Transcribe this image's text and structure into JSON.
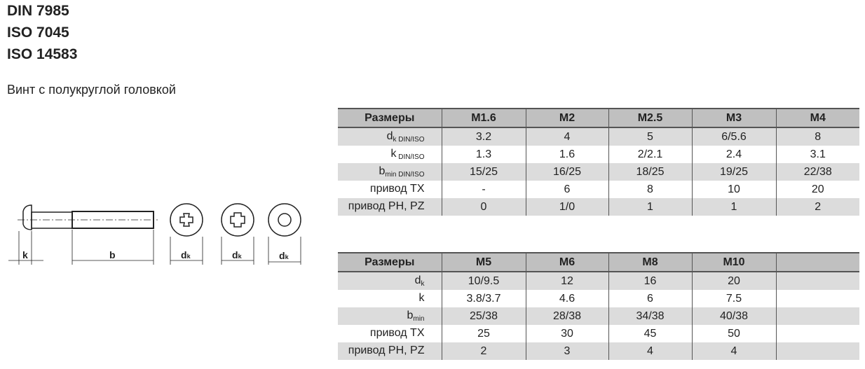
{
  "standards": [
    "DIN 7985",
    "ISO 7045",
    "ISO 14583"
  ],
  "subtitle": "Винт с полукруглой головкой",
  "drawing": {
    "labels": {
      "k": "k",
      "b": "b",
      "dk_main": "d",
      "dk_sub": "k"
    },
    "icons": [
      "screw-side-view-icon",
      "phillips-head-icon",
      "pozidriv-head-icon",
      "torx-head-icon"
    ]
  },
  "table1": {
    "header": [
      "Размеры",
      "M1.6",
      "M2",
      "M2.5",
      "M3",
      "M4"
    ],
    "rows": [
      {
        "label": "d",
        "sub": "k DIN/ISO",
        "values": [
          "3.2",
          "4",
          "5",
          "6/5.6",
          "8"
        ]
      },
      {
        "label": "k",
        "sub": " DIN/ISO",
        "values": [
          "1.3",
          "1.6",
          "2/2.1",
          "2.4",
          "3.1"
        ]
      },
      {
        "label": "b",
        "sub": "min DIN/ISO",
        "values": [
          "15/25",
          "16/25",
          "18/25",
          "19/25",
          "22/38"
        ]
      },
      {
        "label": "привод TX",
        "sub": "",
        "values": [
          "-",
          "6",
          "8",
          "10",
          "20"
        ]
      },
      {
        "label": "привод PH, PZ",
        "sub": "",
        "values": [
          "0",
          "1/0",
          "1",
          "1",
          "2"
        ]
      }
    ]
  },
  "table2": {
    "header": [
      "Размеры",
      "M5",
      "M6",
      "M8",
      "M10",
      ""
    ],
    "rows": [
      {
        "label": "d",
        "sub": "k",
        "values": [
          "10/9.5",
          "12",
          "16",
          "20",
          ""
        ]
      },
      {
        "label": "k",
        "sub": "",
        "values": [
          "3.8/3.7",
          "4.6",
          "6",
          "7.5",
          ""
        ]
      },
      {
        "label": "b",
        "sub": "min",
        "values": [
          "25/38",
          "28/38",
          "34/38",
          "40/38",
          ""
        ]
      },
      {
        "label": "привод TX",
        "sub": "",
        "values": [
          "25",
          "30",
          "45",
          "50",
          ""
        ]
      },
      {
        "label": "привод PH, PZ",
        "sub": "",
        "values": [
          "2",
          "3",
          "4",
          "4",
          ""
        ]
      }
    ]
  },
  "colors": {
    "header_bg": "#c0c0c0",
    "stripe_bg": "#dcdcdc",
    "border": "#555555"
  }
}
